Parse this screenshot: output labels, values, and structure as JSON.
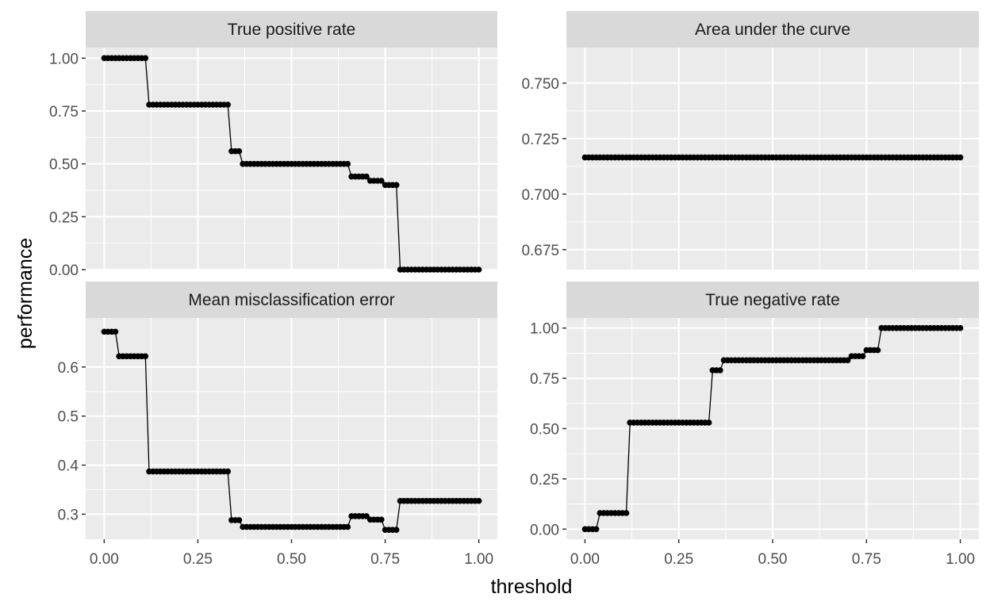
{
  "axes": {
    "xlabel": "threshold",
    "ylabel": "performance"
  },
  "colors": {
    "panel_bg": "#EBEBEB",
    "strip_bg": "#D9D9D9",
    "grid": "#FFFFFF",
    "series": "#000000"
  },
  "chart_data": [
    {
      "type": "line",
      "facet": "True positive rate",
      "title": "True positive rate",
      "xlim": [
        0,
        1
      ],
      "ylim": [
        0,
        1.05
      ],
      "x_ticks": [
        0,
        0.25,
        0.5,
        0.75,
        1
      ],
      "x_tick_labels": [
        "0.00",
        "0.25",
        "0.50",
        "0.75",
        "1.00"
      ],
      "y_ticks": [
        0,
        0.25,
        0.5,
        0.75,
        1
      ],
      "y_tick_labels": [
        "0.00",
        "0.25",
        "0.50",
        "0.75",
        "1.00"
      ],
      "steps": [
        [
          0.0,
          1.0
        ],
        [
          0.12,
          0.78
        ],
        [
          0.33,
          0.78
        ],
        [
          0.335,
          0.72
        ],
        [
          0.34,
          0.56
        ],
        [
          0.37,
          0.5
        ],
        [
          0.65,
          0.5
        ],
        [
          0.655,
          0.44
        ],
        [
          0.71,
          0.42
        ],
        [
          0.75,
          0.4
        ],
        [
          0.78,
          0.4
        ],
        [
          0.785,
          0.0
        ],
        [
          1.0,
          0.0
        ]
      ]
    },
    {
      "type": "line",
      "facet": "Area under the curve",
      "title": "Area under the curve",
      "xlim": [
        0,
        1
      ],
      "ylim": [
        0.666,
        0.766
      ],
      "x_ticks": [
        0,
        0.25,
        0.5,
        0.75,
        1
      ],
      "x_tick_labels": [
        "0.00",
        "0.25",
        "0.50",
        "0.75",
        "1.00"
      ],
      "y_ticks": [
        0.675,
        0.7,
        0.725,
        0.75
      ],
      "y_tick_labels": [
        "0.675",
        "0.700",
        "0.725",
        "0.750"
      ],
      "steps": [
        [
          0.0,
          0.7165
        ],
        [
          1.0,
          0.7165
        ]
      ]
    },
    {
      "type": "line",
      "facet": "Mean misclassification error",
      "title": "Mean misclassification error",
      "xlim": [
        0,
        1
      ],
      "ylim": [
        0.249,
        0.7
      ],
      "x_ticks": [
        0,
        0.25,
        0.5,
        0.75,
        1
      ],
      "x_tick_labels": [
        "0.00",
        "0.25",
        "0.50",
        "0.75",
        "1.00"
      ],
      "y_ticks": [
        0.3,
        0.4,
        0.5,
        0.6
      ],
      "y_tick_labels": [
        "0.3",
        "0.4",
        "0.5",
        "0.6"
      ],
      "steps": [
        [
          0.0,
          0.672
        ],
        [
          0.04,
          0.622
        ],
        [
          0.12,
          0.387
        ],
        [
          0.33,
          0.387
        ],
        [
          0.335,
          0.405
        ],
        [
          0.34,
          0.288
        ],
        [
          0.37,
          0.274
        ],
        [
          0.65,
          0.274
        ],
        [
          0.655,
          0.296
        ],
        [
          0.71,
          0.289
        ],
        [
          0.75,
          0.268
        ],
        [
          0.78,
          0.268
        ],
        [
          0.785,
          0.327
        ],
        [
          1.0,
          0.327
        ]
      ]
    },
    {
      "type": "line",
      "facet": "True negative rate",
      "title": "True negative rate",
      "xlim": [
        0,
        1
      ],
      "ylim": [
        -0.05,
        1.05
      ],
      "x_ticks": [
        0,
        0.25,
        0.5,
        0.75,
        1
      ],
      "x_tick_labels": [
        "0.00",
        "0.25",
        "0.50",
        "0.75",
        "1.00"
      ],
      "y_ticks": [
        0,
        0.25,
        0.5,
        0.75,
        1
      ],
      "y_tick_labels": [
        "0.00",
        "0.25",
        "0.50",
        "0.75",
        "1.00"
      ],
      "steps": [
        [
          0.0,
          0.0
        ],
        [
          0.04,
          0.08
        ],
        [
          0.12,
          0.53
        ],
        [
          0.33,
          0.53
        ],
        [
          0.34,
          0.79
        ],
        [
          0.37,
          0.84
        ],
        [
          0.7,
          0.84
        ],
        [
          0.71,
          0.86
        ],
        [
          0.75,
          0.89
        ],
        [
          0.78,
          0.89
        ],
        [
          0.785,
          1.0
        ],
        [
          1.0,
          1.0
        ]
      ]
    }
  ]
}
